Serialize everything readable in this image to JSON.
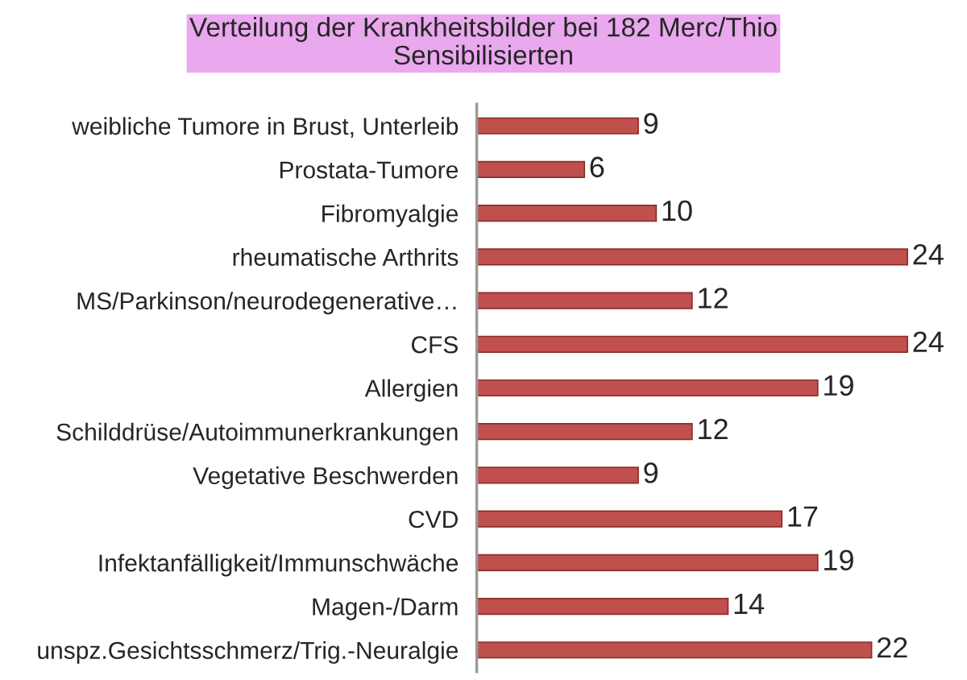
{
  "chart_data": {
    "type": "bar",
    "orientation": "horizontal",
    "title": "Verteilung der Krankheitsbilder bei 182 Merc/Thio\nSensibilisierten",
    "categories": [
      "weibliche Tumore in Brust, Unterleib",
      "Prostata-Tumore",
      "Fibromyalgie",
      "rheumatische Arthrits",
      "MS/Parkinson/neurodegenerative…",
      "CFS",
      "Allergien",
      "Schilddrüse/Autoimmunerkrankungen",
      "Vegetative Beschwerden",
      "CVD",
      "Infektanfälligkeit/Immunschwäche",
      "Magen-/Darm",
      "unspz.Gesichtsschmerz/Trig.-Neuralgie"
    ],
    "values": [
      9,
      6,
      10,
      24,
      12,
      24,
      19,
      12,
      9,
      17,
      19,
      14,
      22
    ],
    "color": "#c0504d",
    "data_labels": true,
    "tick_labels": "y"
  }
}
